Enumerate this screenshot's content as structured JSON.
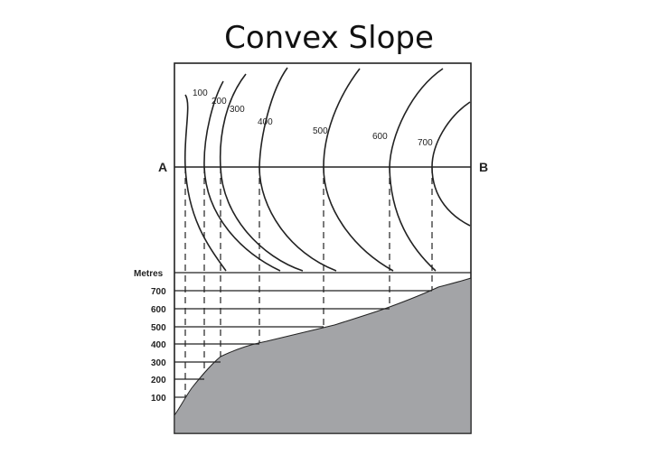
{
  "title": "Convex Slope",
  "diagram": {
    "point_a": "A",
    "point_b": "B",
    "contour_labels": [
      "100",
      "200",
      "300",
      "400",
      "500",
      "600",
      "700"
    ],
    "axis_title": "Metres",
    "axis_ticks": [
      "700",
      "600",
      "500",
      "400",
      "300",
      "200",
      "100"
    ],
    "colors": {
      "line": "#222222",
      "profile_fill": "#a3a4a7"
    }
  }
}
